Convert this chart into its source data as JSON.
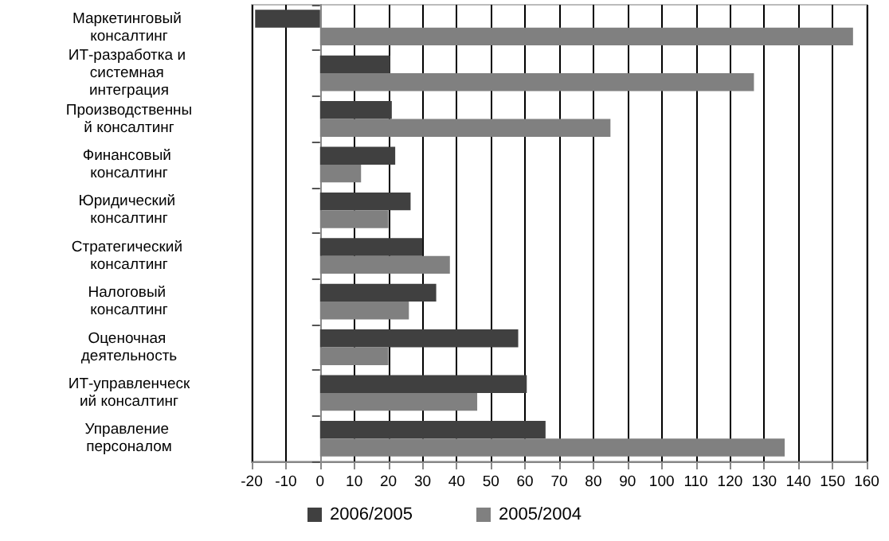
{
  "chart_data": {
    "type": "bar",
    "orientation": "horizontal",
    "categories": [
      "Маркетинговый консалтинг",
      "ИТ-разработка и системная интеграция",
      "Производственный консалтинг",
      "Финансовый консалтинг",
      "Юридический консалтинг",
      "Стратегический консалтинг",
      "Налоговый консалтинг",
      "Оценочная деятельность",
      "ИТ-управленческий консалтинг",
      "Управление персоналом"
    ],
    "series": [
      {
        "name": "2006/2005",
        "color": "#404040",
        "values": [
          -19,
          20.5,
          21,
          22,
          26.5,
          30,
          34,
          58,
          60.5,
          66
        ]
      },
      {
        "name": "2005/2004",
        "color": "#808080",
        "values": [
          156,
          127,
          85,
          12,
          20,
          38,
          26,
          20,
          46,
          136
        ]
      }
    ],
    "xlim": [
      -20,
      160
    ],
    "xticks": [
      -20,
      -10,
      0,
      10,
      20,
      30,
      40,
      50,
      60,
      70,
      80,
      90,
      100,
      110,
      120,
      130,
      140,
      150,
      160
    ],
    "grid": "x",
    "legend": "bottom"
  }
}
